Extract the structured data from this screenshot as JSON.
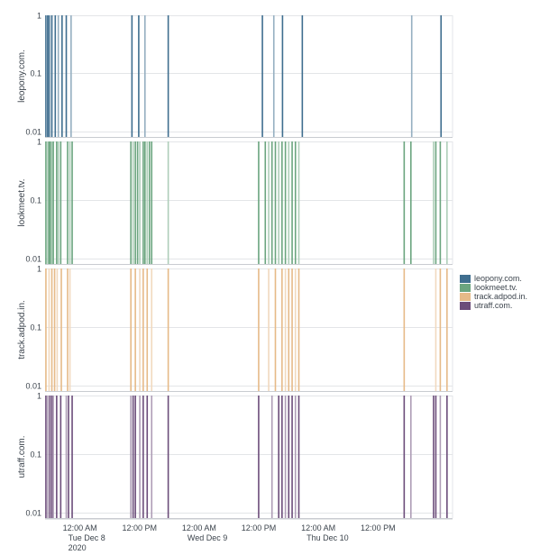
{
  "chart_data": {
    "type": "bar",
    "layout": "small-multiples-stacked",
    "y_scale": "log",
    "y_ticks": [
      "1",
      "0.1",
      "0.01"
    ],
    "y_tick_values": [
      1,
      0.1,
      0.01
    ],
    "x_range": [
      "2020-12-07T17:00",
      "2020-12-11T03:00"
    ],
    "x_ticks": [
      {
        "value": "2020-12-08T00:00",
        "lines": [
          "12:00 AM",
          "Tue Dec 8",
          "2020"
        ]
      },
      {
        "value": "2020-12-08T12:00",
        "lines": [
          "12:00 PM"
        ]
      },
      {
        "value": "2020-12-09T00:00",
        "lines": [
          "12:00 AM",
          "Wed Dec 9"
        ]
      },
      {
        "value": "2020-12-09T12:00",
        "lines": [
          "12:00 PM"
        ]
      },
      {
        "value": "2020-12-10T00:00",
        "lines": [
          "12:00 AM",
          "Thu Dec 10"
        ]
      },
      {
        "value": "2020-12-10T12:00",
        "lines": [
          "12:00 PM"
        ]
      }
    ],
    "legend_position": "right",
    "series": [
      {
        "name": "leopony.com.",
        "color": "#3f6e8f",
        "bar_value": 1,
        "timestamps": [
          "2020-12-07T17:10",
          "2020-12-07T17:22",
          "2020-12-07T17:33",
          "2020-12-07T17:48",
          "2020-12-07T17:58",
          "2020-12-07T18:22",
          "2020-12-07T19:03",
          "2020-12-07T19:40",
          "2020-12-07T20:25",
          "2020-12-07T21:16",
          "2020-12-07T22:14",
          "2020-12-08T10:29",
          "2020-12-08T11:51",
          "2020-12-08T13:06",
          "2020-12-08T17:47",
          "2020-12-09T12:44",
          "2020-12-09T15:02",
          "2020-12-09T16:47",
          "2020-12-09T20:46",
          "2020-12-10T18:47",
          "2020-12-11T00:41"
        ]
      },
      {
        "name": "lookmeet.tv.",
        "color": "#6ba57f",
        "bar_value": 1,
        "timestamps": [
          "2020-12-07T17:10",
          "2020-12-07T17:33",
          "2020-12-07T17:48",
          "2020-12-07T18:05",
          "2020-12-07T18:22",
          "2020-12-07T18:39",
          "2020-12-07T19:20",
          "2020-12-07T19:40",
          "2020-12-07T20:09",
          "2020-12-07T21:32",
          "2020-12-07T22:00",
          "2020-12-07T22:27",
          "2020-12-08T10:16",
          "2020-12-08T10:43",
          "2020-12-08T11:10",
          "2020-12-08T11:37",
          "2020-12-08T12:04",
          "2020-12-08T12:45",
          "2020-12-08T13:06",
          "2020-12-08T13:33",
          "2020-12-08T14:00",
          "2020-12-08T14:27",
          "2020-12-08T17:47",
          "2020-12-09T11:59",
          "2020-12-09T13:19",
          "2020-12-09T14:00",
          "2020-12-09T14:40",
          "2020-12-09T15:21",
          "2020-12-09T16:01",
          "2020-12-09T16:41",
          "2020-12-09T17:22",
          "2020-12-09T18:02",
          "2020-12-09T18:43",
          "2020-12-09T19:23",
          "2020-12-09T20:04",
          "2020-12-10T17:16",
          "2020-12-10T18:37",
          "2020-12-10T23:11",
          "2020-12-10T23:38",
          "2020-12-11T00:32",
          "2020-12-11T01:53"
        ]
      },
      {
        "name": "track.adpod.in.",
        "color": "#e6ba88",
        "bar_value": 1,
        "timestamps": [
          "2020-12-07T17:10",
          "2020-12-07T17:48",
          "2020-12-07T18:22",
          "2020-12-07T18:55",
          "2020-12-07T19:26",
          "2020-12-07T20:16",
          "2020-12-07T21:32",
          "2020-12-07T22:00",
          "2020-12-08T10:16",
          "2020-12-08T11:10",
          "2020-12-08T12:04",
          "2020-12-08T12:45",
          "2020-12-08T13:33",
          "2020-12-08T14:27",
          "2020-12-08T17:47",
          "2020-12-09T11:59",
          "2020-12-09T14:00",
          "2020-12-09T15:21",
          "2020-12-09T16:41",
          "2020-12-09T17:22",
          "2020-12-09T18:02",
          "2020-12-09T18:43",
          "2020-12-09T19:23",
          "2020-12-09T20:04",
          "2020-12-10T17:16",
          "2020-12-10T23:38",
          "2020-12-11T00:32",
          "2020-12-11T01:53"
        ]
      },
      {
        "name": "utraff.com.",
        "color": "#6c4d7a",
        "bar_value": 1,
        "timestamps": [
          "2020-12-07T17:10",
          "2020-12-07T17:33",
          "2020-12-07T17:58",
          "2020-12-07T18:22",
          "2020-12-07T18:39",
          "2020-12-07T19:20",
          "2020-12-07T20:09",
          "2020-12-07T21:16",
          "2020-12-07T21:43",
          "2020-12-07T22:27",
          "2020-12-08T10:16",
          "2020-12-08T10:43",
          "2020-12-08T11:10",
          "2020-12-08T12:04",
          "2020-12-08T12:45",
          "2020-12-08T13:33",
          "2020-12-08T14:27",
          "2020-12-08T17:47",
          "2020-12-09T11:59",
          "2020-12-09T14:40",
          "2020-12-09T16:01",
          "2020-12-09T16:41",
          "2020-12-09T17:22",
          "2020-12-09T18:02",
          "2020-12-09T18:43",
          "2020-12-09T19:23",
          "2020-12-09T20:04",
          "2020-12-10T17:16",
          "2020-12-10T18:37",
          "2020-12-10T23:11",
          "2020-12-10T23:38",
          "2020-12-11T00:32",
          "2020-12-11T01:53"
        ]
      }
    ]
  }
}
